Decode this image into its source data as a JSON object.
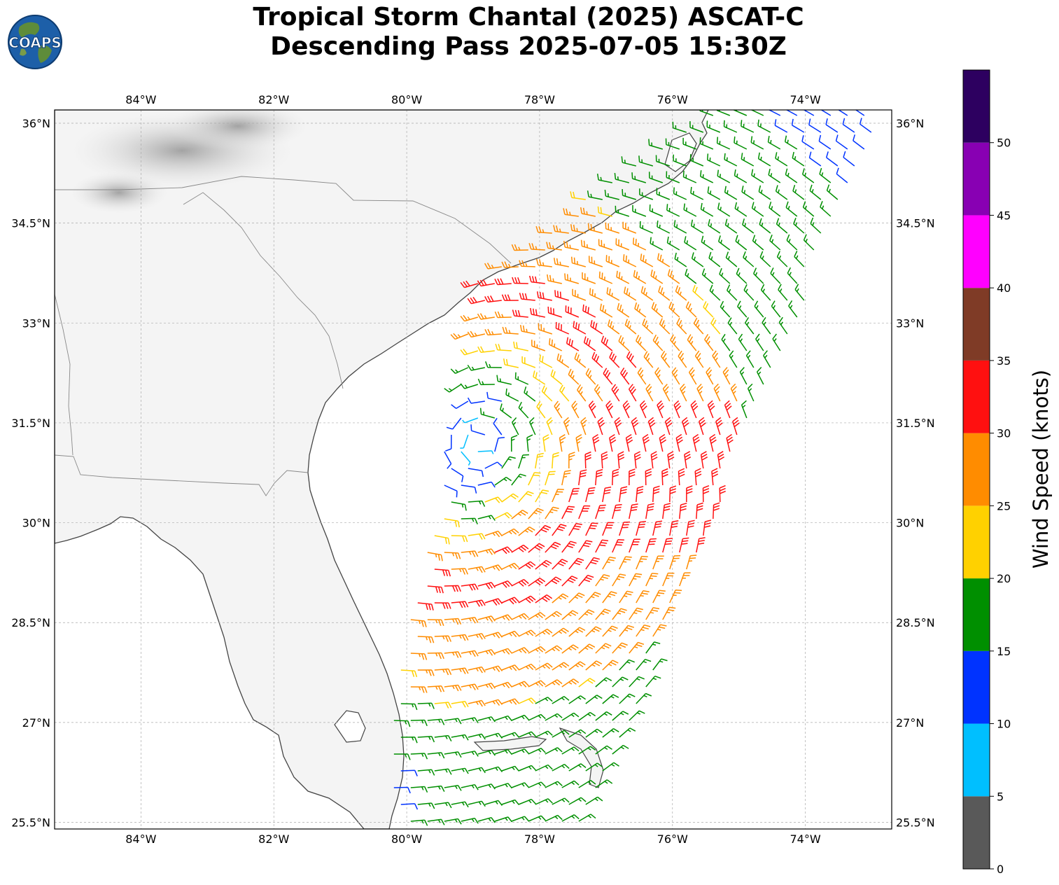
{
  "header": {
    "title_line1": "Tropical Storm Chantal (2025) ASCAT-C",
    "title_line2": "Descending Pass 2025-07-05 15:30Z",
    "logo_text": "COAPS"
  },
  "map": {
    "lon_min": -85.3,
    "lon_max": -72.7,
    "lat_min": 25.4,
    "lat_max": 36.2,
    "lon_ticks": [
      -84,
      -82,
      -80,
      -78,
      -76,
      -74
    ],
    "lon_tick_labels": [
      "84°W",
      "82°W",
      "80°W",
      "78°W",
      "76°W",
      "74°W"
    ],
    "lat_ticks": [
      25.5,
      27,
      28.5,
      30,
      31.5,
      33,
      34.5,
      36
    ],
    "lat_tick_labels": [
      "25.5°N",
      "27°N",
      "28.5°N",
      "30°N",
      "31.5°N",
      "33°N",
      "34.5°N",
      "36°N"
    ],
    "storm_center": {
      "lon": -78.9,
      "lat": 31.2
    },
    "land_color": "#f4f4f4",
    "coast_color": "#444444",
    "border_color": "#888888",
    "grid_color": "#aaaaaa"
  },
  "colorbar": {
    "label": "Wind Speed (knots)",
    "ticks": [
      0,
      5,
      10,
      15,
      20,
      25,
      30,
      35,
      40,
      45,
      50
    ],
    "tick_labels": [
      "0",
      "5",
      "10",
      "15",
      "20",
      "25",
      "30",
      "35",
      "40",
      "45",
      "50"
    ],
    "bins": [
      {
        "min": 0,
        "max": 5,
        "color": "#595959"
      },
      {
        "min": 5,
        "max": 10,
        "color": "#00bfff"
      },
      {
        "min": 10,
        "max": 15,
        "color": "#0033ff"
      },
      {
        "min": 15,
        "max": 20,
        "color": "#008f00"
      },
      {
        "min": 20,
        "max": 25,
        "color": "#ffd100"
      },
      {
        "min": 25,
        "max": 30,
        "color": "#ff8c00"
      },
      {
        "min": 30,
        "max": 35,
        "color": "#ff1010"
      },
      {
        "min": 35,
        "max": 40,
        "color": "#7f3b26"
      },
      {
        "min": 40,
        "max": 45,
        "color": "#ff00ff"
      },
      {
        "min": 45,
        "max": 50,
        "color": "#8800b3"
      },
      {
        "min": 50,
        "max": 55,
        "color": "#2d0060"
      }
    ]
  }
}
